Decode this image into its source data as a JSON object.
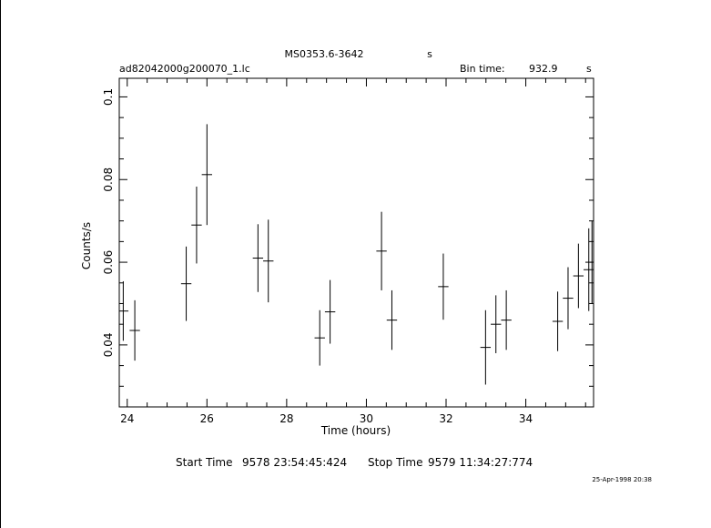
{
  "header": {
    "source_name": "MS0353.6-3642",
    "source_unit": "s",
    "file_name": "ad82042000g200070_1.lc",
    "bin_time_label": "Bin time:",
    "bin_time_value": "932.9",
    "bin_time_unit": "s"
  },
  "footer": {
    "start_label": "Start Time",
    "start_value": "9578 23:54:45:424",
    "stop_label": "Stop Time",
    "stop_value": "9579 11:34:27:774",
    "timestamp": "25-Apr-1998 20:38"
  },
  "chart_data": {
    "type": "scatter",
    "xlabel": "Time (hours)",
    "ylabel": "Counts/s",
    "xlim": [
      23.8,
      35.7
    ],
    "ylim": [
      0.025,
      0.1045
    ],
    "x_ticks": [
      24,
      26,
      28,
      30,
      32,
      34
    ],
    "x_tick_labels": [
      "24",
      "26",
      "28",
      "30",
      "32",
      "34"
    ],
    "y_ticks": [
      0.04,
      0.06,
      0.08,
      0.1
    ],
    "y_tick_labels": [
      "0.04",
      "0.06",
      "0.08",
      "0.1"
    ],
    "grid": false,
    "points": [
      {
        "x": 23.9,
        "xerr": 0.13,
        "y": 0.0482,
        "yerr": 0.0072
      },
      {
        "x": 24.19,
        "xerr": 0.13,
        "y": 0.0435,
        "yerr": 0.0073
      },
      {
        "x": 25.48,
        "xerr": 0.13,
        "y": 0.0548,
        "yerr": 0.009
      },
      {
        "x": 25.74,
        "xerr": 0.13,
        "y": 0.069,
        "yerr": 0.0093
      },
      {
        "x": 26.0,
        "xerr": 0.13,
        "y": 0.0812,
        "yerr": 0.0122
      },
      {
        "x": 27.28,
        "xerr": 0.13,
        "y": 0.061,
        "yerr": 0.0082
      },
      {
        "x": 27.54,
        "xerr": 0.13,
        "y": 0.0603,
        "yerr": 0.01
      },
      {
        "x": 28.83,
        "xerr": 0.13,
        "y": 0.0417,
        "yerr": 0.0067
      },
      {
        "x": 29.09,
        "xerr": 0.13,
        "y": 0.048,
        "yerr": 0.0077
      },
      {
        "x": 30.38,
        "xerr": 0.13,
        "y": 0.0627,
        "yerr": 0.0095
      },
      {
        "x": 30.64,
        "xerr": 0.13,
        "y": 0.046,
        "yerr": 0.0072
      },
      {
        "x": 31.93,
        "xerr": 0.13,
        "y": 0.0541,
        "yerr": 0.008
      },
      {
        "x": 32.99,
        "xerr": 0.13,
        "y": 0.0394,
        "yerr": 0.009
      },
      {
        "x": 33.25,
        "xerr": 0.13,
        "y": 0.045,
        "yerr": 0.007
      },
      {
        "x": 33.51,
        "xerr": 0.13,
        "y": 0.046,
        "yerr": 0.0072
      },
      {
        "x": 34.8,
        "xerr": 0.13,
        "y": 0.0457,
        "yerr": 0.0072
      },
      {
        "x": 35.06,
        "xerr": 0.13,
        "y": 0.0513,
        "yerr": 0.0075
      },
      {
        "x": 35.32,
        "xerr": 0.13,
        "y": 0.0567,
        "yerr": 0.0078
      },
      {
        "x": 35.58,
        "xerr": 0.13,
        "y": 0.0582,
        "yerr": 0.01
      },
      {
        "x": 35.66,
        "xerr": 0.04,
        "y": 0.06,
        "yerr": 0.01
      }
    ]
  }
}
